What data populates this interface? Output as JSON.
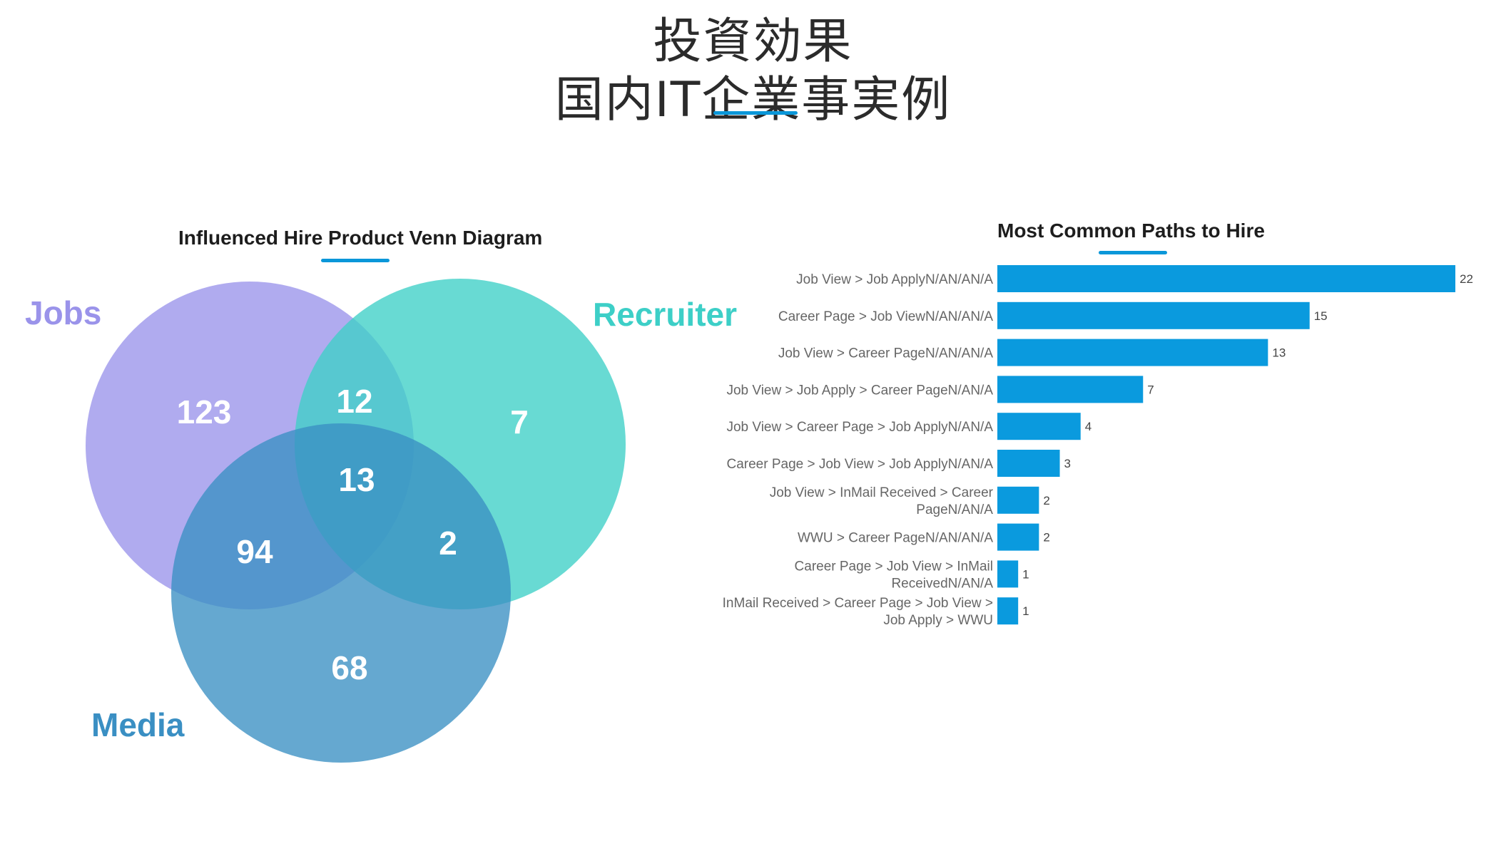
{
  "page_title": {
    "line1": "投資効果",
    "line2": "国内IT企業事実例"
  },
  "chart_data": [
    {
      "type": "venn",
      "title": "Influenced Hire Product Venn Diagram",
      "sets": [
        {
          "name": "Jobs",
          "color": "#9a93ea"
        },
        {
          "name": "Recruiter",
          "color": "#3dcfc7"
        },
        {
          "name": "Media",
          "color": "#3a8fc3"
        }
      ],
      "regions": {
        "jobs_only": 123,
        "recruiter_only": 7,
        "media_only": 68,
        "jobs_recruiter": 12,
        "jobs_media": 94,
        "recruiter_media": 2,
        "all_three": 13
      }
    },
    {
      "type": "bar",
      "orientation": "horizontal",
      "title": "Most Common Paths to Hire",
      "bar_color": "#0a9ade",
      "categories": [
        [
          "Job View > Job ApplyN/AN/AN/A"
        ],
        [
          "Career Page > Job ViewN/AN/AN/A"
        ],
        [
          "Job View > Career PageN/AN/AN/A"
        ],
        [
          "Job View > Job Apply > Career PageN/AN/A"
        ],
        [
          "Job View > Career Page > Job ApplyN/AN/A"
        ],
        [
          "Career Page > Job View > Job ApplyN/AN/A"
        ],
        [
          "Job View > InMail Received > Career",
          "PageN/AN/A"
        ],
        [
          "WWU > Career PageN/AN/AN/A"
        ],
        [
          "Career Page > Job View > InMail",
          "ReceivedN/AN/A"
        ],
        [
          "InMail Received > Career Page > Job View >",
          "Job Apply > WWU"
        ]
      ],
      "values": [
        22,
        15,
        13,
        7,
        4,
        3,
        2,
        2,
        1,
        1
      ],
      "xlim": [
        0,
        22
      ]
    }
  ]
}
